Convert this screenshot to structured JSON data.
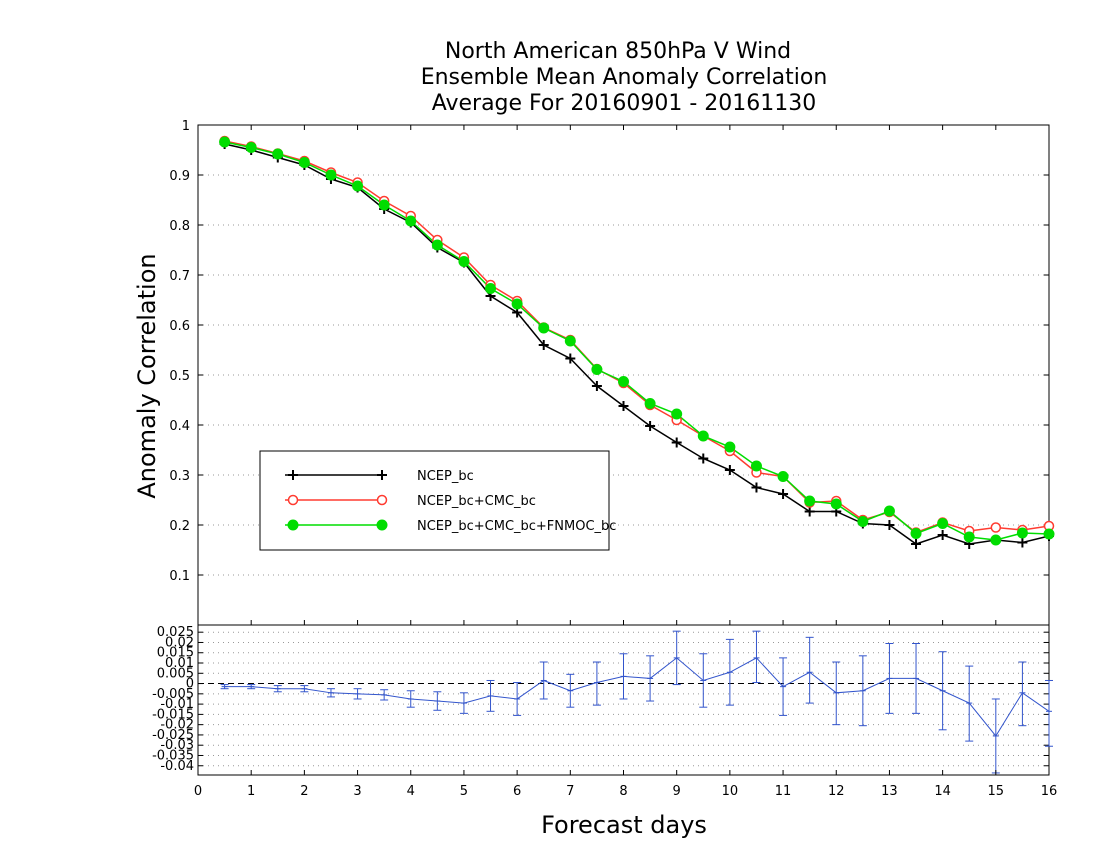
{
  "chart_data": [
    {
      "type": "line",
      "title_lines": [
        "North American 850hPa V Wind",
        "Ensemble Mean Anomaly Correlation",
        "Average For 20160901 - 20161130"
      ],
      "xlabel": "",
      "ylabel": "Anomaly Correlation",
      "xlim": [
        0,
        16
      ],
      "ylim": [
        0,
        1
      ],
      "yticks": [
        "0.1",
        "0.2",
        "0.3",
        "0.4",
        "0.5",
        "0.6",
        "0.7",
        "0.8",
        "0.9",
        "1"
      ],
      "grid": true,
      "legend_position": "left-middle",
      "x": [
        0.5,
        1,
        1.5,
        2,
        2.5,
        3,
        3.5,
        4,
        4.5,
        5,
        5.5,
        6,
        6.5,
        7,
        7.5,
        8,
        8.5,
        9,
        9.5,
        10,
        10.5,
        11,
        11.5,
        12,
        12.5,
        13,
        13.5,
        14,
        14.5,
        15,
        15.5,
        16
      ],
      "series": [
        {
          "name": "NCEP_bc",
          "color": "#000000",
          "marker": "plus",
          "values": [
            0.962,
            0.95,
            0.935,
            0.92,
            0.892,
            0.875,
            0.832,
            0.805,
            0.755,
            0.725,
            0.658,
            0.625,
            0.56,
            0.533,
            0.478,
            0.438,
            0.398,
            0.365,
            0.333,
            0.31,
            0.275,
            0.262,
            0.227,
            0.227,
            0.203,
            0.2,
            0.162,
            0.18,
            0.162,
            0.17,
            0.165,
            0.178
          ]
        },
        {
          "name": "NCEP_bc+CMC_bc",
          "color": "#ff3b30",
          "marker": "open-circle",
          "values": [
            0.968,
            0.957,
            0.943,
            0.928,
            0.905,
            0.885,
            0.848,
            0.818,
            0.77,
            0.735,
            0.68,
            0.648,
            0.595,
            0.57,
            0.512,
            0.484,
            0.44,
            0.41,
            0.378,
            0.348,
            0.305,
            0.297,
            0.245,
            0.248,
            0.21,
            0.226,
            0.185,
            0.205,
            0.188,
            0.195,
            0.19,
            0.198
          ]
        },
        {
          "name": "NCEP_bc+CMC_bc+FNMOC_bc",
          "color": "#00dd00",
          "marker": "filled-circle",
          "values": [
            0.966,
            0.955,
            0.942,
            0.925,
            0.9,
            0.878,
            0.84,
            0.808,
            0.76,
            0.727,
            0.673,
            0.642,
            0.594,
            0.568,
            0.511,
            0.487,
            0.443,
            0.422,
            0.378,
            0.356,
            0.318,
            0.297,
            0.248,
            0.242,
            0.207,
            0.228,
            0.183,
            0.203,
            0.176,
            0.17,
            0.184,
            0.182
          ]
        }
      ]
    },
    {
      "type": "line",
      "title": "",
      "xlabel": "Forecast days",
      "ylabel": "",
      "xlim": [
        0,
        16
      ],
      "ylim": [
        -0.0445,
        0.0285
      ],
      "xticks": [
        "0",
        "1",
        "2",
        "3",
        "4",
        "5",
        "6",
        "7",
        "8",
        "9",
        "10",
        "11",
        "12",
        "13",
        "14",
        "15",
        "16"
      ],
      "yticks": [
        "0.025",
        "0.02",
        "0.015",
        "0.01",
        "0.005",
        "0",
        "-0.005",
        "-0.01",
        "-0.015",
        "-0.02",
        "-0.025",
        "-0.03",
        "-0.035",
        "-0.04"
      ],
      "grid": true,
      "x": [
        0.5,
        1,
        1.5,
        2,
        2.5,
        3,
        3.5,
        4,
        4.5,
        5,
        5.5,
        6,
        6.5,
        7,
        7.5,
        8,
        8.5,
        9,
        9.5,
        10,
        10.5,
        11,
        11.5,
        12,
        12.5,
        13,
        13.5,
        14,
        14.5,
        15,
        15.5,
        16
      ],
      "series": [
        {
          "name": "",
          "color": "#3355cc",
          "values": [
            -0.0015,
            -0.0015,
            -0.0025,
            -0.0025,
            -0.0045,
            -0.005,
            -0.0055,
            -0.0075,
            -0.0085,
            -0.0095,
            -0.006,
            -0.0075,
            0.0015,
            -0.0035,
            0.0005,
            0.0035,
            0.0025,
            0.0125,
            0.0015,
            0.0055,
            0.0125,
            -0.0015,
            0.0055,
            -0.0045,
            -0.0035,
            0.0025,
            0.0025,
            -0.0035,
            -0.0095,
            -0.0255,
            -0.0045,
            -0.0135
          ],
          "error_low": [
            -0.0025,
            -0.0025,
            -0.004,
            -0.004,
            -0.0065,
            -0.0075,
            -0.008,
            -0.0115,
            -0.013,
            -0.0145,
            -0.0135,
            -0.0155,
            -0.0075,
            -0.0115,
            -0.0105,
            -0.0075,
            -0.0085,
            -0.0005,
            -0.0115,
            -0.0105,
            0.0005,
            -0.0155,
            -0.0095,
            -0.02,
            -0.0205,
            -0.0145,
            -0.0145,
            -0.0225,
            -0.028,
            -0.0435,
            -0.0205,
            -0.0305
          ],
          "error_high": [
            -0.0005,
            -0.0005,
            -0.001,
            -0.001,
            -0.0025,
            -0.0025,
            -0.003,
            -0.0035,
            -0.004,
            -0.0045,
            0.0015,
            0.0005,
            0.0105,
            0.0045,
            0.0105,
            0.0145,
            0.0135,
            0.0255,
            0.0145,
            0.0215,
            0.0255,
            0.0125,
            0.0225,
            0.0105,
            0.0135,
            0.0195,
            0.0195,
            0.0155,
            0.0085,
            -0.0075,
            0.0105,
            0.0015
          ]
        }
      ]
    }
  ]
}
